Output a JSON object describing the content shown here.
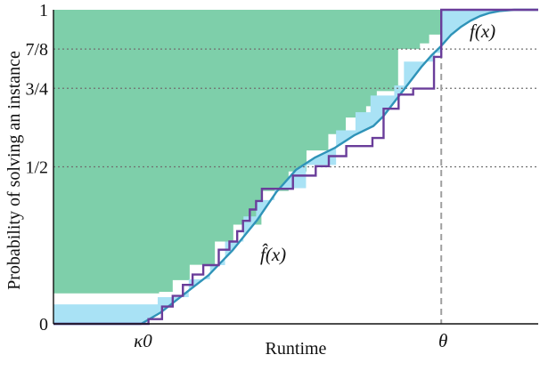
{
  "chart_data": {
    "type": "line",
    "title": "",
    "xlabel": "Runtime",
    "ylabel": "Probability of solving an instance",
    "xlim": [
      0,
      1
    ],
    "ylim": [
      0,
      1
    ],
    "y_ticks": [
      {
        "value": 0,
        "label": "0"
      },
      {
        "value": 0.5,
        "label": "1/2"
      },
      {
        "value": 0.75,
        "label": "3/4"
      },
      {
        "value": 0.875,
        "label": "7/8"
      },
      {
        "value": 1,
        "label": "1"
      }
    ],
    "x_markers": [
      {
        "value": 0.181,
        "label": "κ0"
      },
      {
        "value": 0.8,
        "label": "θ"
      }
    ],
    "colors": {
      "green_region": "#7ecfaa",
      "blue_region": "#a9e2f5",
      "true_curve": "#2f93b8",
      "estimate_curve": "#6a3d9a",
      "reference_line": "#a0a0a0",
      "axis": "#111111"
    },
    "series": [
      {
        "name": "f(x)",
        "role": "true-cdf",
        "x": [
          0.181,
          0.22,
          0.27,
          0.32,
          0.37,
          0.42,
          0.46,
          0.5,
          0.54,
          0.58,
          0.62,
          0.66,
          0.68,
          0.7,
          0.72,
          0.74,
          0.76,
          0.78,
          0.8,
          0.82,
          0.84,
          0.86,
          0.88,
          0.9,
          0.92,
          0.95,
          1.0
        ],
        "y": [
          0.0,
          0.035,
          0.095,
          0.155,
          0.235,
          0.33,
          0.42,
          0.49,
          0.53,
          0.56,
          0.6,
          0.63,
          0.66,
          0.7,
          0.74,
          0.78,
          0.82,
          0.855,
          0.885,
          0.92,
          0.945,
          0.965,
          0.98,
          0.99,
          0.996,
          1.0,
          1.0
        ]
      },
      {
        "name": "f̂(x)",
        "role": "estimate",
        "steps": [
          [
            0.181,
            0.0
          ],
          [
            0.196,
            0.015
          ],
          [
            0.224,
            0.055
          ],
          [
            0.246,
            0.089
          ],
          [
            0.267,
            0.124
          ],
          [
            0.287,
            0.157
          ],
          [
            0.309,
            0.187
          ],
          [
            0.341,
            0.236
          ],
          [
            0.363,
            0.262
          ],
          [
            0.379,
            0.295
          ],
          [
            0.391,
            0.328
          ],
          [
            0.405,
            0.364
          ],
          [
            0.418,
            0.391
          ],
          [
            0.43,
            0.43
          ],
          [
            0.494,
            0.472
          ],
          [
            0.541,
            0.502
          ],
          [
            0.568,
            0.534
          ],
          [
            0.604,
            0.566
          ],
          [
            0.658,
            0.592
          ],
          [
            0.681,
            0.685
          ],
          [
            0.712,
            0.73
          ],
          [
            0.742,
            0.749
          ],
          [
            0.785,
            0.85
          ],
          [
            0.8,
            1.0
          ]
        ],
        "x_end": 1.0
      },
      {
        "name": "",
        "role": "upper-region",
        "steps": [
          [
            0.0,
            0.062
          ],
          [
            0.215,
            0.085
          ],
          [
            0.279,
            0.142
          ],
          [
            0.323,
            0.187
          ],
          [
            0.354,
            0.262
          ],
          [
            0.392,
            0.342
          ],
          [
            0.418,
            0.394
          ],
          [
            0.456,
            0.432
          ],
          [
            0.521,
            0.506
          ],
          [
            0.583,
            0.616
          ],
          [
            0.623,
            0.674
          ],
          [
            0.654,
            0.727
          ],
          [
            0.703,
            0.759
          ],
          [
            0.723,
            0.835
          ],
          [
            0.787,
            0.863
          ],
          [
            0.8,
            1.0
          ]
        ],
        "x_end": 1.0
      },
      {
        "name": "",
        "role": "green-region",
        "steps": [
          [
            0.0,
            0.097
          ],
          [
            0.218,
            0.102
          ],
          [
            0.246,
            0.139
          ],
          [
            0.281,
            0.188
          ],
          [
            0.333,
            0.262
          ],
          [
            0.371,
            0.316
          ],
          [
            0.429,
            0.423
          ],
          [
            0.485,
            0.485
          ],
          [
            0.522,
            0.552
          ],
          [
            0.567,
            0.604
          ],
          [
            0.603,
            0.657
          ],
          [
            0.645,
            0.693
          ],
          [
            0.667,
            0.741
          ],
          [
            0.711,
            0.875
          ],
          [
            0.756,
            0.893
          ],
          [
            0.775,
            0.921
          ],
          [
            0.8,
            1.0
          ]
        ],
        "x_end": 0.8
      }
    ],
    "annotations": [
      {
        "text": "f(x)",
        "for": "true-cdf"
      },
      {
        "text": "f̂(x)",
        "for": "estimate"
      }
    ]
  }
}
